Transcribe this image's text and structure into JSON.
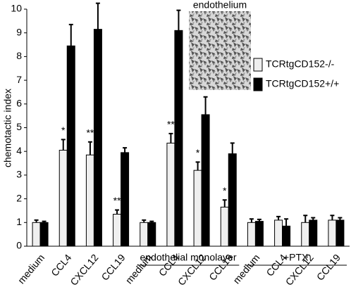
{
  "chart_data": {
    "type": "bar",
    "y_label": "chemotactic index",
    "categories": [
      "medium",
      "CCL4",
      "CXCL12",
      "CCL19",
      "medium",
      "CCL4",
      "CXCL12",
      "CCL19",
      "medium",
      "CCL4",
      "CXCL12",
      "CCL19"
    ],
    "series": [
      {
        "name": "TCRtgCD152-/-",
        "color": "#efefef",
        "values": [
          1.0,
          4.05,
          3.85,
          1.35,
          1.0,
          4.35,
          3.2,
          1.65,
          1.0,
          1.1,
          1.0,
          1.1
        ],
        "errors": [
          0.1,
          0.45,
          0.55,
          0.18,
          0.1,
          0.4,
          0.35,
          0.3,
          0.15,
          0.15,
          0.3,
          0.2
        ]
      },
      {
        "name": "TCRtgCD152+/+",
        "color": "#000000",
        "values": [
          1.0,
          8.45,
          9.15,
          3.95,
          1.0,
          9.1,
          5.55,
          3.9,
          1.05,
          0.85,
          1.1,
          1.1
        ],
        "errors": [
          0.05,
          0.9,
          1.1,
          0.2,
          0.05,
          0.85,
          0.75,
          0.45,
          0.08,
          0.3,
          0.1,
          0.1
        ]
      }
    ],
    "significance": [
      null,
      "*",
      "**",
      "**",
      null,
      "**",
      "*",
      "*",
      null,
      null,
      null,
      null
    ],
    "group_labels": [
      "endothelial monolayer",
      "+PTX"
    ],
    "inset_label": "endothelium",
    "ylim": [
      0,
      10
    ],
    "yticks": [
      0,
      1,
      2,
      3,
      4,
      5,
      6,
      7,
      8,
      9,
      10
    ]
  }
}
